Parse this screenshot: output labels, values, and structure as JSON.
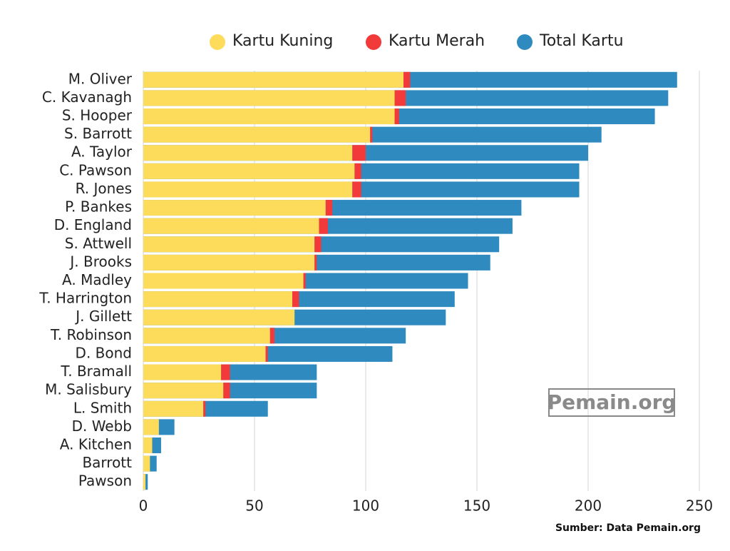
{
  "chart_data": {
    "type": "bar",
    "orientation": "horizontal",
    "categories": [
      "M. Oliver",
      "C. Kavanagh",
      "S. Hooper",
      "S. Barrott",
      "A. Taylor",
      "C. Pawson",
      "R. Jones",
      "P. Bankes",
      "D. England",
      "S. Attwell",
      "J. Brooks",
      "A. Madley",
      "T. Harrington",
      "J. Gillett",
      "T. Robinson",
      "D. Bond",
      "T. Bramall",
      "M. Salisbury",
      "L. Smith",
      "D. Webb",
      "A. Kitchen",
      "Barrott",
      "Pawson"
    ],
    "series": [
      {
        "name": "Kartu Kuning",
        "color": "#fddc5c",
        "values": [
          117,
          113,
          113,
          102,
          94,
          95,
          94,
          82,
          79,
          77,
          77,
          72,
          67,
          68,
          57,
          55,
          35,
          36,
          27,
          7,
          4,
          3,
          1
        ]
      },
      {
        "name": "Kartu Merah",
        "color": "#f23a3a",
        "values": [
          3,
          5,
          2,
          1,
          6,
          3,
          4,
          3,
          4,
          3,
          1,
          1,
          3,
          0,
          2,
          1,
          4,
          3,
          1,
          0,
          0,
          0,
          0
        ]
      },
      {
        "name": "Total Kartu",
        "color": "#2f8bbf",
        "values": [
          240,
          236,
          230,
          206,
          200,
          196,
          196,
          170,
          166,
          160,
          156,
          146,
          140,
          136,
          118,
          112,
          78,
          78,
          56,
          14,
          8,
          6,
          2
        ]
      }
    ],
    "xlim": [
      0,
      250
    ],
    "xticks": [
      0,
      50,
      100,
      150,
      200,
      250
    ],
    "grid": true,
    "watermark": "Pemain.org",
    "source": "Sumber: Data Pemain.org"
  }
}
